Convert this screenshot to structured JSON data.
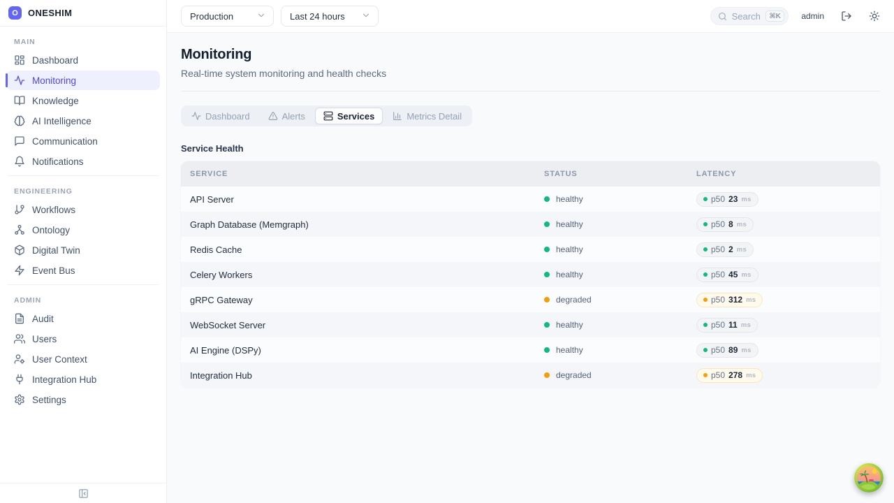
{
  "brand": {
    "name": "ONESHIM",
    "logo_letter": "O"
  },
  "sidebar": {
    "sections": [
      {
        "label": "MAIN",
        "items": [
          {
            "label": "Dashboard",
            "icon": "dashboard-grid",
            "active": false
          },
          {
            "label": "Monitoring",
            "icon": "activity",
            "active": true
          },
          {
            "label": "Knowledge",
            "icon": "book-open",
            "active": false
          },
          {
            "label": "AI Intelligence",
            "icon": "brain",
            "active": false
          },
          {
            "label": "Communication",
            "icon": "chat-bubble",
            "active": false
          },
          {
            "label": "Notifications",
            "icon": "bell",
            "active": false
          }
        ]
      },
      {
        "label": "ENGINEERING",
        "items": [
          {
            "label": "Workflows",
            "icon": "git-branch",
            "active": false
          },
          {
            "label": "Ontology",
            "icon": "hierarchy",
            "active": false
          },
          {
            "label": "Digital Twin",
            "icon": "cube",
            "active": false
          },
          {
            "label": "Event Bus",
            "icon": "zap",
            "active": false
          }
        ]
      },
      {
        "label": "ADMIN",
        "items": [
          {
            "label": "Audit",
            "icon": "file-text",
            "active": false
          },
          {
            "label": "Users",
            "icon": "users",
            "active": false
          },
          {
            "label": "User Context",
            "icon": "user-gear",
            "active": false
          },
          {
            "label": "Integration Hub",
            "icon": "plug",
            "active": false
          },
          {
            "label": "Settings",
            "icon": "gear",
            "active": false
          }
        ]
      }
    ]
  },
  "topbar": {
    "environment": "Production",
    "time_range": "Last 24 hours",
    "search_placeholder": "Search",
    "search_shortcut": "⌘K",
    "user": "admin"
  },
  "page": {
    "title": "Monitoring",
    "subtitle": "Real-time system monitoring and health checks"
  },
  "tabs": [
    {
      "label": "Dashboard",
      "icon": "activity",
      "active": false
    },
    {
      "label": "Alerts",
      "icon": "alert-triangle",
      "active": false
    },
    {
      "label": "Services",
      "icon": "server",
      "active": true
    },
    {
      "label": "Metrics Detail",
      "icon": "bar-chart",
      "active": false
    }
  ],
  "service_health": {
    "heading": "Service Health",
    "columns": [
      "SERVICE",
      "STATUS",
      "LATENCY"
    ],
    "latency_prefix": "p50",
    "latency_unit": "ms",
    "rows": [
      {
        "service": "API Server",
        "status": "healthy",
        "p50": "23"
      },
      {
        "service": "Graph Database (Memgraph)",
        "status": "healthy",
        "p50": "8"
      },
      {
        "service": "Redis Cache",
        "status": "healthy",
        "p50": "2"
      },
      {
        "service": "Celery Workers",
        "status": "healthy",
        "p50": "45"
      },
      {
        "service": "gRPC Gateway",
        "status": "degraded",
        "p50": "312"
      },
      {
        "service": "WebSocket Server",
        "status": "healthy",
        "p50": "11"
      },
      {
        "service": "AI Engine (DSPy)",
        "status": "healthy",
        "p50": "89"
      },
      {
        "service": "Integration Hub",
        "status": "degraded",
        "p50": "278"
      }
    ]
  },
  "colors": {
    "accent": "#6366f1",
    "healthy": "#10b981",
    "degraded": "#f59e0b",
    "background": "#f8fafc"
  }
}
